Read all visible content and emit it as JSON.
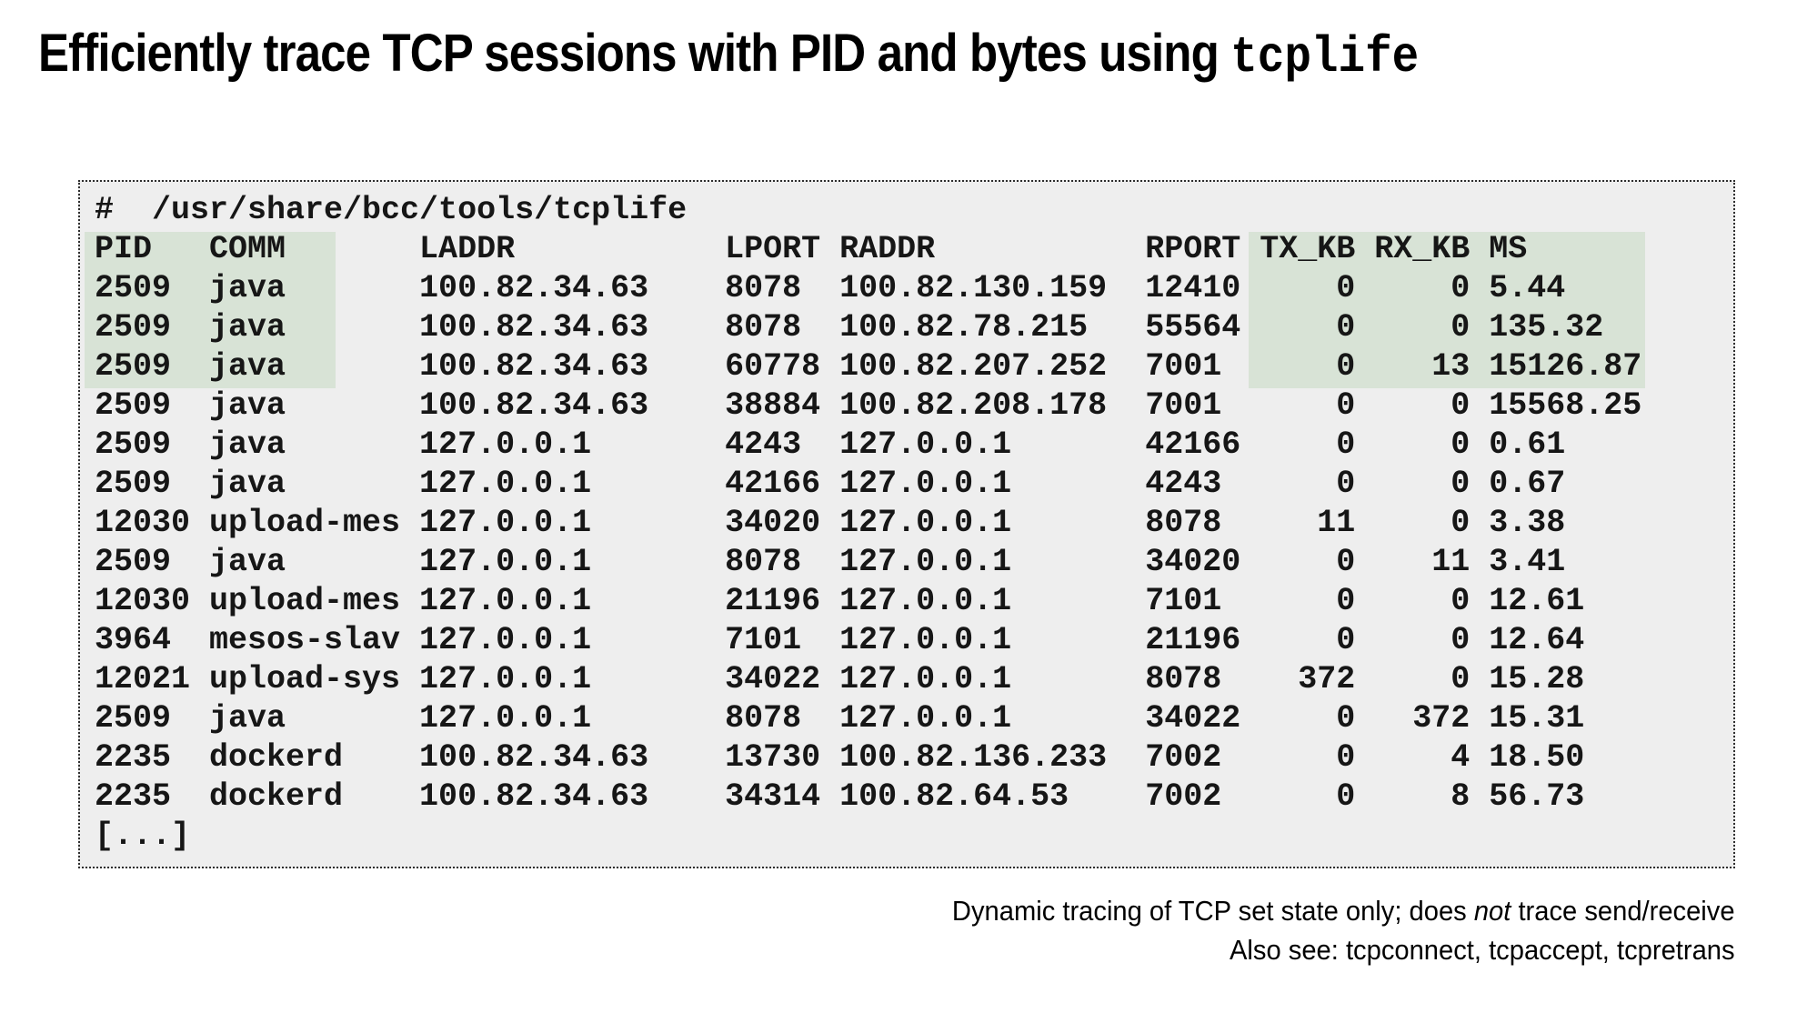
{
  "title": {
    "main": "Efficiently trace TCP sessions with PID and bytes using ",
    "code": "tcplife"
  },
  "terminal": {
    "command": "#  /usr/share/bcc/tools/tcplife",
    "columns": [
      {
        "label": "PID",
        "key": "pid",
        "width": 5,
        "align": "left"
      },
      {
        "label": "COMM",
        "key": "comm",
        "width": 10,
        "align": "left"
      },
      {
        "label": "LADDR",
        "key": "laddr",
        "width": 15,
        "align": "left"
      },
      {
        "label": "LPORT",
        "key": "lport",
        "width": 5,
        "align": "left"
      },
      {
        "label": "RADDR",
        "key": "raddr",
        "width": 15,
        "align": "left"
      },
      {
        "label": "RPORT",
        "key": "rport",
        "width": 5,
        "align": "left"
      },
      {
        "label": "TX_KB",
        "key": "tx_kb",
        "width": 5,
        "align": "right"
      },
      {
        "label": "RX_KB",
        "key": "rx_kb",
        "width": 5,
        "align": "right"
      },
      {
        "label": "MS",
        "key": "ms",
        "width": 0,
        "align": "left"
      }
    ],
    "rows": [
      {
        "pid": "2509",
        "comm": "java",
        "laddr": "100.82.34.63",
        "lport": "8078",
        "raddr": "100.82.130.159",
        "rport": "12410",
        "tx_kb": "0",
        "rx_kb": "0",
        "ms": "5.44"
      },
      {
        "pid": "2509",
        "comm": "java",
        "laddr": "100.82.34.63",
        "lport": "8078",
        "raddr": "100.82.78.215",
        "rport": "55564",
        "tx_kb": "0",
        "rx_kb": "0",
        "ms": "135.32"
      },
      {
        "pid": "2509",
        "comm": "java",
        "laddr": "100.82.34.63",
        "lport": "60778",
        "raddr": "100.82.207.252",
        "rport": "7001",
        "tx_kb": "0",
        "rx_kb": "13",
        "ms": "15126.87"
      },
      {
        "pid": "2509",
        "comm": "java",
        "laddr": "100.82.34.63",
        "lport": "38884",
        "raddr": "100.82.208.178",
        "rport": "7001",
        "tx_kb": "0",
        "rx_kb": "0",
        "ms": "15568.25"
      },
      {
        "pid": "2509",
        "comm": "java",
        "laddr": "127.0.0.1",
        "lport": "4243",
        "raddr": "127.0.0.1",
        "rport": "42166",
        "tx_kb": "0",
        "rx_kb": "0",
        "ms": "0.61"
      },
      {
        "pid": "2509",
        "comm": "java",
        "laddr": "127.0.0.1",
        "lport": "42166",
        "raddr": "127.0.0.1",
        "rport": "4243",
        "tx_kb": "0",
        "rx_kb": "0",
        "ms": "0.67"
      },
      {
        "pid": "12030",
        "comm": "upload-mes",
        "laddr": "127.0.0.1",
        "lport": "34020",
        "raddr": "127.0.0.1",
        "rport": "8078",
        "tx_kb": "11",
        "rx_kb": "0",
        "ms": "3.38"
      },
      {
        "pid": "2509",
        "comm": "java",
        "laddr": "127.0.0.1",
        "lport": "8078",
        "raddr": "127.0.0.1",
        "rport": "34020",
        "tx_kb": "0",
        "rx_kb": "11",
        "ms": "3.41"
      },
      {
        "pid": "12030",
        "comm": "upload-mes",
        "laddr": "127.0.0.1",
        "lport": "21196",
        "raddr": "127.0.0.1",
        "rport": "7101",
        "tx_kb": "0",
        "rx_kb": "0",
        "ms": "12.61"
      },
      {
        "pid": "3964",
        "comm": "mesos-slav",
        "laddr": "127.0.0.1",
        "lport": "7101",
        "raddr": "127.0.0.1",
        "rport": "21196",
        "tx_kb": "0",
        "rx_kb": "0",
        "ms": "12.64"
      },
      {
        "pid": "12021",
        "comm": "upload-sys",
        "laddr": "127.0.0.1",
        "lport": "34022",
        "raddr": "127.0.0.1",
        "rport": "8078",
        "tx_kb": "372",
        "rx_kb": "0",
        "ms": "15.28"
      },
      {
        "pid": "2509",
        "comm": "java",
        "laddr": "127.0.0.1",
        "lport": "8078",
        "raddr": "127.0.0.1",
        "rport": "34022",
        "tx_kb": "0",
        "rx_kb": "372",
        "ms": "15.31"
      },
      {
        "pid": "2235",
        "comm": "dockerd",
        "laddr": "100.82.34.63",
        "lport": "13730",
        "raddr": "100.82.136.233",
        "rport": "7002",
        "tx_kb": "0",
        "rx_kb": "4",
        "ms": "18.50"
      },
      {
        "pid": "2235",
        "comm": "dockerd",
        "laddr": "100.82.34.63",
        "lport": "34314",
        "raddr": "100.82.64.53",
        "rport": "7002",
        "tx_kb": "0",
        "rx_kb": "8",
        "ms": "56.73"
      }
    ],
    "truncation_line": "[...]",
    "colors": {
      "terminal_background": "#eeeeee",
      "highlight_green": "#d8e3d6",
      "border": "#2e2e2e",
      "text": "#161616"
    },
    "highlights": {
      "left_block_columns": "PID, COMM",
      "right_block_columns": "TX_KB, RX_KB, MS",
      "applies_to": "header row and first 3 data rows"
    }
  },
  "caption": {
    "line1_prefix": "Dynamic tracing of TCP set state only; does ",
    "line1_emphasis": "not",
    "line1_suffix": " trace send/receive",
    "line2": "Also see: tcpconnect, tcpaccept, tcpretrans"
  }
}
